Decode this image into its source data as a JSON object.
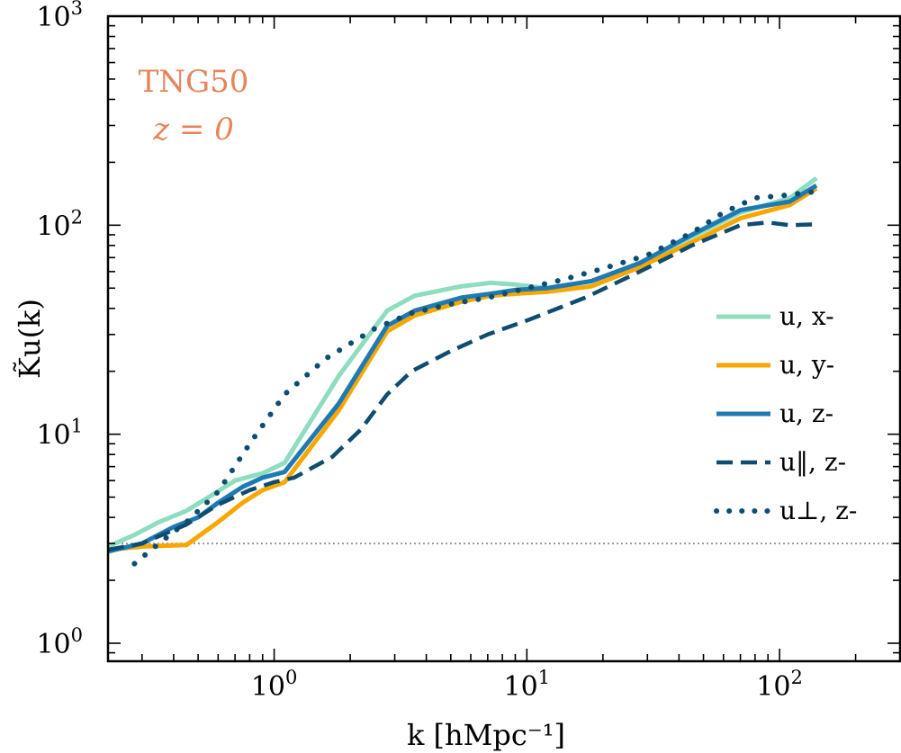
{
  "chart_data": {
    "type": "line",
    "xscale": "log",
    "yscale": "log",
    "xlim": [
      0.22,
      300
    ],
    "ylim": [
      0.82,
      1000
    ],
    "xlabel": "k [hMpc⁻¹]",
    "ylabel": "K̃u(k)",
    "x_ticks": [
      {
        "value": 1,
        "base": "10",
        "exp": "0"
      },
      {
        "value": 10,
        "base": "10",
        "exp": "1"
      },
      {
        "value": 100,
        "base": "10",
        "exp": "2"
      }
    ],
    "y_ticks": [
      {
        "value": 1,
        "base": "10",
        "exp": "0"
      },
      {
        "value": 10,
        "base": "10",
        "exp": "1"
      },
      {
        "value": 100,
        "base": "10",
        "exp": "2"
      },
      {
        "value": 1000,
        "base": "10",
        "exp": "3"
      }
    ],
    "annotations": {
      "sim": "TNG50",
      "redshift": "z = 0",
      "color": "#E8845A"
    },
    "reference_line": {
      "y": 3.0,
      "style": "dotted",
      "color": "#999999"
    },
    "legend_position": "right",
    "series": [
      {
        "name": "u,  x-",
        "color": "#8DDDBE",
        "style": "solid",
        "width": 5,
        "x": [
          0.22,
          0.28,
          0.35,
          0.45,
          0.55,
          0.7,
          0.9,
          1.1,
          1.8,
          2.8,
          3.6,
          5.5,
          7.2,
          9,
          12,
          18,
          28,
          45,
          70,
          110,
          140
        ],
        "y": [
          2.9,
          3.3,
          3.8,
          4.3,
          5.0,
          6.0,
          6.5,
          7.3,
          19,
          39,
          46,
          51,
          53,
          52,
          50,
          54,
          66,
          88,
          115,
          135,
          168
        ]
      },
      {
        "name": "u,  y-",
        "color": "#F7A700",
        "style": "solid",
        "width": 5,
        "x": [
          0.22,
          0.3,
          0.45,
          0.6,
          0.75,
          0.9,
          1.1,
          1.8,
          2.8,
          3.6,
          5.5,
          7.2,
          9,
          12,
          18,
          28,
          45,
          70,
          110,
          140
        ],
        "y": [
          2.8,
          2.9,
          2.95,
          3.8,
          4.7,
          5.4,
          5.9,
          13,
          31,
          37,
          43,
          46,
          47,
          48,
          51,
          63,
          83,
          108,
          125,
          150
        ]
      },
      {
        "name": "u,  z-",
        "color": "#1F7AB4",
        "style": "solid",
        "width": 5,
        "x": [
          0.22,
          0.3,
          0.4,
          0.5,
          0.6,
          0.75,
          0.9,
          1.1,
          1.8,
          2.8,
          3.6,
          5.5,
          7.2,
          9,
          12,
          18,
          28,
          45,
          70,
          110,
          140
        ],
        "y": [
          2.75,
          3.0,
          3.6,
          4.0,
          4.7,
          5.6,
          6.2,
          6.6,
          14,
          33,
          39,
          45,
          47,
          49,
          50,
          54,
          66,
          90,
          118,
          130,
          155
        ]
      },
      {
        "name": "u‖,  z-",
        "color": "#0E4D70",
        "style": "dashed",
        "width": 4.5,
        "x": [
          0.22,
          0.3,
          0.45,
          0.6,
          0.8,
          1.0,
          1.2,
          1.7,
          2.2,
          2.8,
          3.5,
          5,
          7,
          10,
          17,
          28,
          45,
          70,
          90,
          110,
          140
        ],
        "y": [
          2.8,
          3.0,
          3.7,
          4.6,
          5.4,
          5.9,
          6.2,
          7.8,
          10.5,
          15.5,
          20,
          25,
          30,
          35,
          45,
          60,
          80,
          100,
          103,
          100,
          101
        ]
      },
      {
        "name": "u⊥,  z-",
        "color": "#0E4D70",
        "style": "dotted",
        "width": 6,
        "x": [
          0.28,
          0.35,
          0.45,
          0.6,
          0.8,
          1.1,
          1.6,
          2.5,
          3.5,
          5,
          7,
          10,
          14,
          20,
          30,
          45,
          60,
          80,
          100,
          140
        ],
        "y": [
          2.4,
          3.0,
          3.8,
          5.3,
          9.0,
          15.5,
          23,
          32,
          38,
          42,
          45,
          50,
          55,
          62,
          72,
          92,
          115,
          135,
          138,
          145
        ]
      }
    ]
  }
}
